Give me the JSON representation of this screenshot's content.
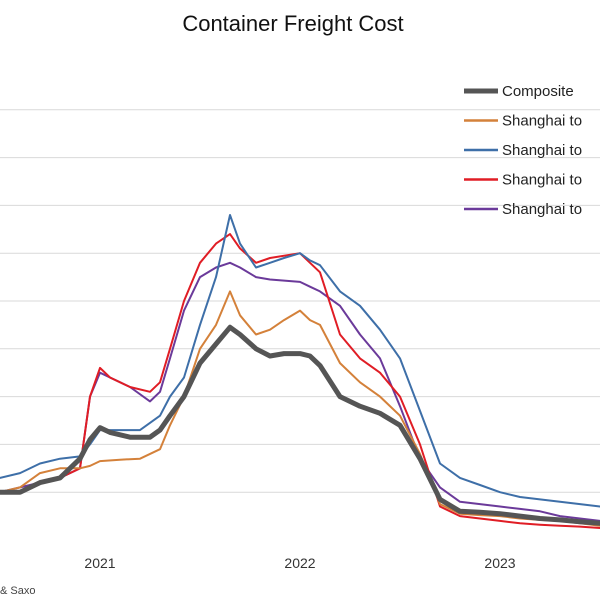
{
  "chart_data": {
    "type": "line",
    "title": "Container Freight Cost",
    "source_text": "& Saxo",
    "x_ticks": [
      {
        "label": "2021",
        "value": 2021.0
      },
      {
        "label": "2022",
        "value": 2022.0
      },
      {
        "label": "2023",
        "value": 2023.0
      }
    ],
    "xlim": [
      2020.5,
      2023.5
    ],
    "ylim": [
      0,
      1
    ],
    "y_gridlines": [
      0.1,
      0.2,
      0.3,
      0.4,
      0.5,
      0.6,
      0.7,
      0.8,
      0.9
    ],
    "grid": true,
    "legend_position": "top-right",
    "series": [
      {
        "name": "Composite",
        "color": "#555555",
        "width": 5,
        "points": [
          [
            2020.5,
            0.1
          ],
          [
            2020.6,
            0.1
          ],
          [
            2020.7,
            0.12
          ],
          [
            2020.8,
            0.13
          ],
          [
            2020.9,
            0.17
          ],
          [
            2020.95,
            0.21
          ],
          [
            2021.0,
            0.235
          ],
          [
            2021.05,
            0.225
          ],
          [
            2021.15,
            0.215
          ],
          [
            2021.25,
            0.215
          ],
          [
            2021.3,
            0.23
          ],
          [
            2021.35,
            0.26
          ],
          [
            2021.42,
            0.3
          ],
          [
            2021.5,
            0.37
          ],
          [
            2021.58,
            0.41
          ],
          [
            2021.65,
            0.445
          ],
          [
            2021.7,
            0.43
          ],
          [
            2021.78,
            0.4
          ],
          [
            2021.85,
            0.385
          ],
          [
            2021.92,
            0.39
          ],
          [
            2022.0,
            0.39
          ],
          [
            2022.05,
            0.385
          ],
          [
            2022.1,
            0.365
          ],
          [
            2022.2,
            0.3
          ],
          [
            2022.3,
            0.28
          ],
          [
            2022.4,
            0.265
          ],
          [
            2022.5,
            0.24
          ],
          [
            2022.6,
            0.17
          ],
          [
            2022.7,
            0.085
          ],
          [
            2022.8,
            0.06
          ],
          [
            2022.9,
            0.058
          ],
          [
            2023.0,
            0.055
          ],
          [
            2023.1,
            0.05
          ],
          [
            2023.2,
            0.045
          ],
          [
            2023.3,
            0.042
          ],
          [
            2023.4,
            0.038
          ],
          [
            2023.5,
            0.035
          ]
        ]
      },
      {
        "name": "Shanghai to ",
        "color": "#d4813a",
        "width": 2,
        "points": [
          [
            2020.5,
            0.1
          ],
          [
            2020.6,
            0.11
          ],
          [
            2020.7,
            0.14
          ],
          [
            2020.8,
            0.15
          ],
          [
            2020.9,
            0.15
          ],
          [
            2020.95,
            0.155
          ],
          [
            2021.0,
            0.165
          ],
          [
            2021.1,
            0.168
          ],
          [
            2021.2,
            0.17
          ],
          [
            2021.3,
            0.19
          ],
          [
            2021.35,
            0.24
          ],
          [
            2021.42,
            0.3
          ],
          [
            2021.5,
            0.4
          ],
          [
            2021.58,
            0.45
          ],
          [
            2021.65,
            0.52
          ],
          [
            2021.7,
            0.47
          ],
          [
            2021.78,
            0.43
          ],
          [
            2021.85,
            0.44
          ],
          [
            2021.92,
            0.46
          ],
          [
            2022.0,
            0.48
          ],
          [
            2022.05,
            0.46
          ],
          [
            2022.1,
            0.45
          ],
          [
            2022.2,
            0.37
          ],
          [
            2022.3,
            0.33
          ],
          [
            2022.4,
            0.3
          ],
          [
            2022.5,
            0.26
          ],
          [
            2022.6,
            0.18
          ],
          [
            2022.7,
            0.075
          ],
          [
            2022.8,
            0.055
          ],
          [
            2022.9,
            0.052
          ],
          [
            2023.0,
            0.05
          ],
          [
            2023.1,
            0.045
          ],
          [
            2023.2,
            0.042
          ],
          [
            2023.3,
            0.04
          ],
          [
            2023.4,
            0.035
          ],
          [
            2023.5,
            0.03
          ]
        ]
      },
      {
        "name": "Shanghai to ",
        "color": "#3e6fa8",
        "width": 2,
        "points": [
          [
            2020.5,
            0.13
          ],
          [
            2020.6,
            0.14
          ],
          [
            2020.7,
            0.16
          ],
          [
            2020.8,
            0.17
          ],
          [
            2020.9,
            0.175
          ],
          [
            2020.95,
            0.2
          ],
          [
            2021.0,
            0.23
          ],
          [
            2021.1,
            0.23
          ],
          [
            2021.2,
            0.23
          ],
          [
            2021.3,
            0.26
          ],
          [
            2021.35,
            0.3
          ],
          [
            2021.42,
            0.34
          ],
          [
            2021.5,
            0.45
          ],
          [
            2021.58,
            0.55
          ],
          [
            2021.65,
            0.68
          ],
          [
            2021.7,
            0.62
          ],
          [
            2021.78,
            0.57
          ],
          [
            2021.85,
            0.58
          ],
          [
            2021.92,
            0.59
          ],
          [
            2022.0,
            0.6
          ],
          [
            2022.05,
            0.585
          ],
          [
            2022.1,
            0.575
          ],
          [
            2022.2,
            0.52
          ],
          [
            2022.3,
            0.49
          ],
          [
            2022.4,
            0.44
          ],
          [
            2022.5,
            0.38
          ],
          [
            2022.6,
            0.27
          ],
          [
            2022.7,
            0.16
          ],
          [
            2022.8,
            0.13
          ],
          [
            2022.9,
            0.115
          ],
          [
            2023.0,
            0.1
          ],
          [
            2023.1,
            0.09
          ],
          [
            2023.2,
            0.085
          ],
          [
            2023.3,
            0.08
          ],
          [
            2023.4,
            0.075
          ],
          [
            2023.5,
            0.07
          ]
        ]
      },
      {
        "name": "Shanghai to ",
        "color": "#e01d25",
        "width": 2,
        "points": [
          [
            2020.5,
            0.1
          ],
          [
            2020.6,
            0.1
          ],
          [
            2020.7,
            0.12
          ],
          [
            2020.8,
            0.13
          ],
          [
            2020.9,
            0.15
          ],
          [
            2020.95,
            0.3
          ],
          [
            2021.0,
            0.36
          ],
          [
            2021.05,
            0.34
          ],
          [
            2021.15,
            0.32
          ],
          [
            2021.25,
            0.31
          ],
          [
            2021.3,
            0.33
          ],
          [
            2021.35,
            0.4
          ],
          [
            2021.42,
            0.5
          ],
          [
            2021.5,
            0.58
          ],
          [
            2021.58,
            0.62
          ],
          [
            2021.65,
            0.64
          ],
          [
            2021.7,
            0.61
          ],
          [
            2021.78,
            0.58
          ],
          [
            2021.85,
            0.59
          ],
          [
            2022.0,
            0.6
          ],
          [
            2022.05,
            0.58
          ],
          [
            2022.1,
            0.56
          ],
          [
            2022.2,
            0.43
          ],
          [
            2022.3,
            0.38
          ],
          [
            2022.4,
            0.35
          ],
          [
            2022.5,
            0.3
          ],
          [
            2022.6,
            0.2
          ],
          [
            2022.7,
            0.07
          ],
          [
            2022.8,
            0.05
          ],
          [
            2022.9,
            0.045
          ],
          [
            2023.0,
            0.04
          ],
          [
            2023.1,
            0.035
          ],
          [
            2023.2,
            0.032
          ],
          [
            2023.3,
            0.03
          ],
          [
            2023.4,
            0.028
          ],
          [
            2023.5,
            0.025
          ]
        ]
      },
      {
        "name": "Shanghai to ",
        "color": "#6b3a9a",
        "width": 2,
        "points": [
          [
            2020.5,
            0.1
          ],
          [
            2020.6,
            0.11
          ],
          [
            2020.7,
            0.12
          ],
          [
            2020.8,
            0.13
          ],
          [
            2020.9,
            0.15
          ],
          [
            2020.95,
            0.3
          ],
          [
            2021.0,
            0.35
          ],
          [
            2021.05,
            0.34
          ],
          [
            2021.15,
            0.32
          ],
          [
            2021.25,
            0.29
          ],
          [
            2021.3,
            0.31
          ],
          [
            2021.35,
            0.38
          ],
          [
            2021.42,
            0.48
          ],
          [
            2021.5,
            0.55
          ],
          [
            2021.58,
            0.57
          ],
          [
            2021.65,
            0.58
          ],
          [
            2021.7,
            0.57
          ],
          [
            2021.78,
            0.55
          ],
          [
            2021.85,
            0.545
          ],
          [
            2022.0,
            0.54
          ],
          [
            2022.05,
            0.53
          ],
          [
            2022.1,
            0.52
          ],
          [
            2022.2,
            0.49
          ],
          [
            2022.3,
            0.43
          ],
          [
            2022.4,
            0.38
          ],
          [
            2022.5,
            0.28
          ],
          [
            2022.6,
            0.17
          ],
          [
            2022.7,
            0.11
          ],
          [
            2022.8,
            0.08
          ],
          [
            2022.9,
            0.075
          ],
          [
            2023.0,
            0.07
          ],
          [
            2023.1,
            0.065
          ],
          [
            2023.2,
            0.06
          ],
          [
            2023.3,
            0.05
          ],
          [
            2023.4,
            0.045
          ],
          [
            2023.5,
            0.04
          ]
        ]
      }
    ]
  }
}
